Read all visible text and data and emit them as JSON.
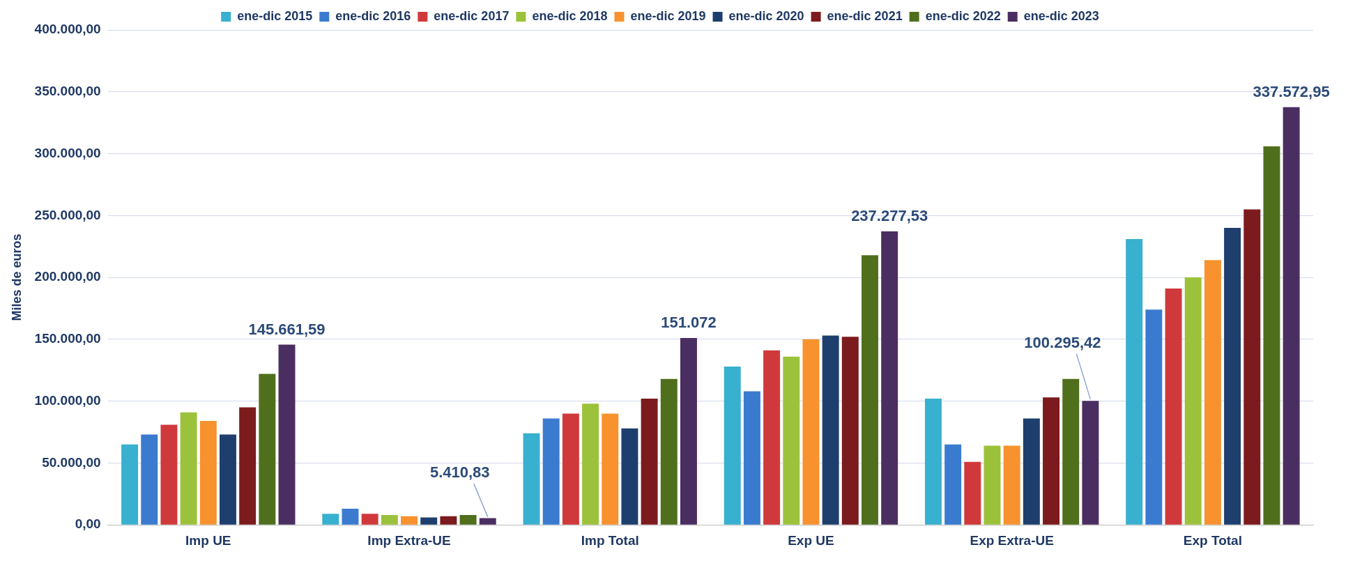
{
  "chart_data": {
    "type": "bar",
    "ylabel": "Miles de euros",
    "categories": [
      "Imp UE",
      "Imp Extra-UE",
      "Imp Total",
      "Exp UE",
      "Exp Extra-UE",
      "Exp Total"
    ],
    "series": [
      {
        "name": "ene-dic 2015",
        "color": "#38b0cf",
        "values": [
          65000,
          9000,
          74000,
          128000,
          102000,
          231000
        ]
      },
      {
        "name": "ene-dic 2016",
        "color": "#3a7bd0",
        "values": [
          73000,
          13000,
          86000,
          108000,
          65000,
          174000
        ]
      },
      {
        "name": "ene-dic 2017",
        "color": "#d0393b",
        "values": [
          81000,
          9000,
          90000,
          141000,
          51000,
          191000
        ]
      },
      {
        "name": "ene-dic 2018",
        "color": "#9cc23b",
        "values": [
          91000,
          8000,
          98000,
          136000,
          64000,
          200000
        ]
      },
      {
        "name": "ene-dic 2019",
        "color": "#f7922e",
        "values": [
          84000,
          7000,
          90000,
          150000,
          64000,
          214000
        ]
      },
      {
        "name": "ene-dic 2020",
        "color": "#1e3f6e",
        "values": [
          73000,
          6000,
          78000,
          153000,
          86000,
          240000
        ]
      },
      {
        "name": "ene-dic 2021",
        "color": "#7c1b1d",
        "values": [
          95000,
          7000,
          102000,
          152000,
          103000,
          255000
        ]
      },
      {
        "name": "ene-dic 2022",
        "color": "#4f6f1d",
        "values": [
          122000,
          8000,
          118000,
          218000,
          118000,
          306000
        ]
      },
      {
        "name": "ene-dic 2023",
        "color": "#4a2e61",
        "values": [
          145661.59,
          5410.83,
          151072,
          237277.53,
          100295.42,
          337572.95
        ],
        "value_labels": [
          "145.661,59",
          "5.410,83",
          "151.072",
          "237.277,53",
          "100.295,42",
          "337.572,95"
        ]
      }
    ],
    "ylim": [
      0,
      400000
    ],
    "yticks": [
      {
        "value": 0,
        "label": "0,00"
      },
      {
        "value": 50000,
        "label": "50.000,00"
      },
      {
        "value": 100000,
        "label": "100.000,00"
      },
      {
        "value": 150000,
        "label": "150.000,00"
      },
      {
        "value": 200000,
        "label": "200.000,00"
      },
      {
        "value": 250000,
        "label": "250.000,00"
      },
      {
        "value": 300000,
        "label": "300.000,00"
      },
      {
        "value": 350000,
        "label": "350.000,00"
      },
      {
        "value": 400000,
        "label": "400.000,00"
      }
    ],
    "grid": "y",
    "legend": "top"
  }
}
